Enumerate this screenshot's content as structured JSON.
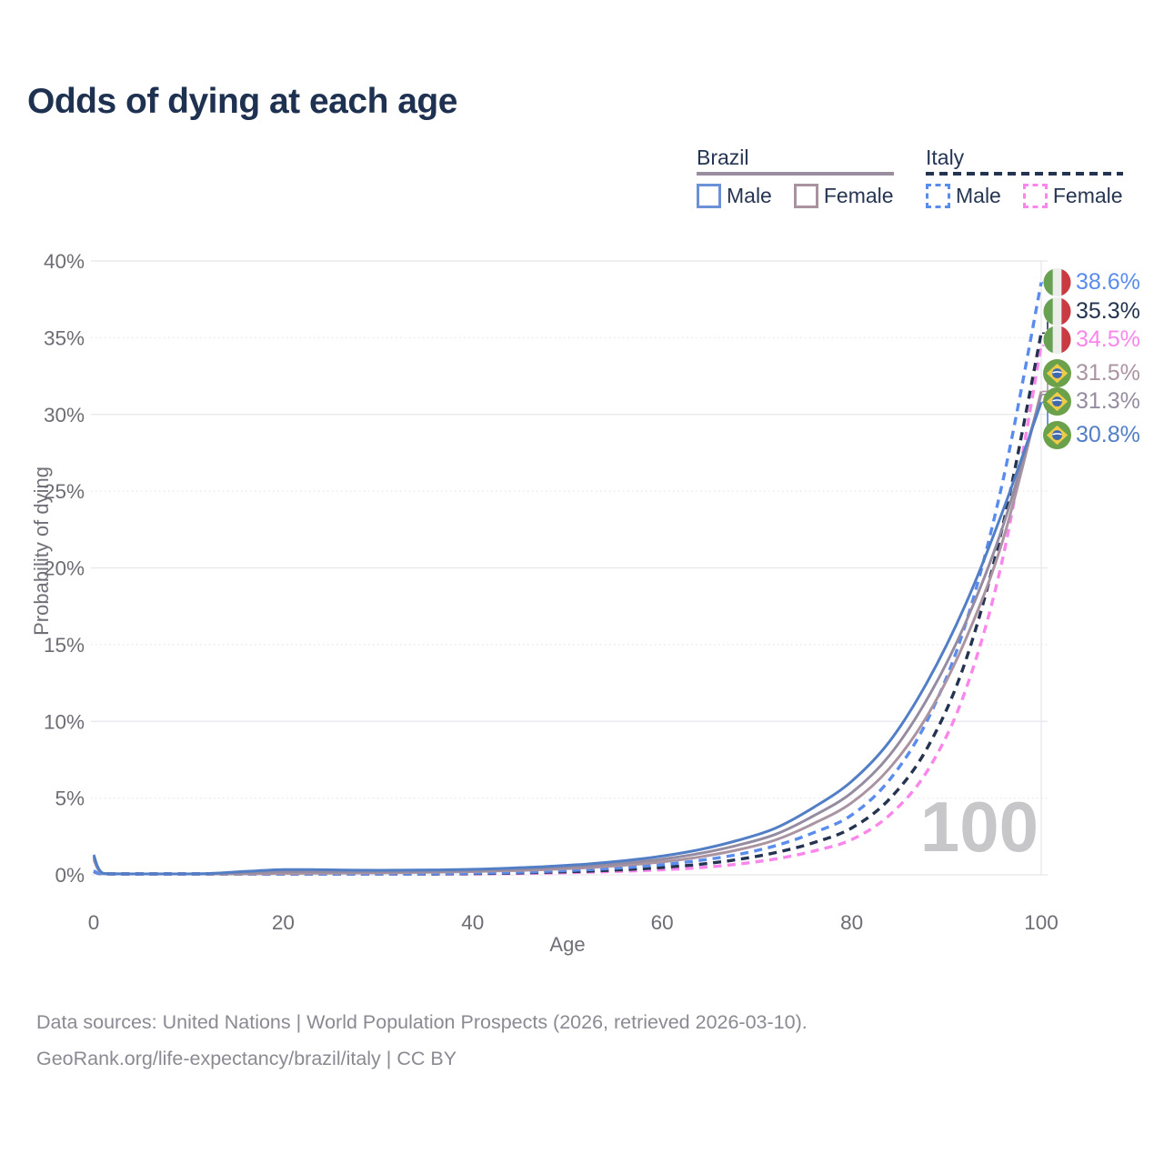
{
  "title": "Odds of dying at each age",
  "legend": {
    "brazil": {
      "label": "Brazil",
      "male": "Male",
      "female": "Female"
    },
    "italy": {
      "label": "Italy",
      "male": "Male",
      "female": "Female"
    }
  },
  "watermark": "100",
  "footer": {
    "line1": "Data sources: United Nations | World Population Prospects (2026, retrieved 2026-03-10).",
    "line2": "GeoRank.org/life-expectancy/brazil/italy | CC BY"
  },
  "colors": {
    "title_text": "#1f3150",
    "legend_text": "#263552",
    "axis_text": "#6d6d75",
    "gridline": "#e7e7ec",
    "watermark": "#c7c7ca",
    "brazil_male": "#527ec6",
    "brazil_both": "#958ca1",
    "brazil_female": "#aa94a2",
    "italy_male": "#5a8cee",
    "italy_both": "#24334f",
    "italy_female": "#fa86ec"
  },
  "chart_data": {
    "type": "line",
    "title": "Odds of dying at each age",
    "xlabel": "Age",
    "ylabel": "Probability of dying",
    "xlim": [
      0,
      100
    ],
    "ylim": [
      0,
      40
    ],
    "grid": "horizontal-only",
    "legend_position": "top-right",
    "xticks": [
      "0",
      "20",
      "40",
      "60",
      "80",
      "100"
    ],
    "yticks": [
      "0%",
      "5%",
      "10%",
      "15%",
      "20%",
      "25%",
      "30%",
      "35%",
      "40%"
    ],
    "series": [
      {
        "id": "italy-female",
        "name": "Italy Female",
        "country": "Italy",
        "sex": "Female",
        "style": "dashed",
        "color": "#fa86ec",
        "end_value": "34.5%",
        "points": [
          [
            0,
            0.2
          ],
          [
            1,
            0.02
          ],
          [
            4,
            0.01
          ],
          [
            8,
            0.01
          ],
          [
            12,
            0.01
          ],
          [
            16,
            0.02
          ],
          [
            20,
            0.03
          ],
          [
            24,
            0.03
          ],
          [
            28,
            0.03
          ],
          [
            32,
            0.04
          ],
          [
            36,
            0.05
          ],
          [
            40,
            0.06
          ],
          [
            44,
            0.08
          ],
          [
            48,
            0.12
          ],
          [
            52,
            0.17
          ],
          [
            56,
            0.24
          ],
          [
            60,
            0.33
          ],
          [
            64,
            0.47
          ],
          [
            68,
            0.7
          ],
          [
            72,
            1.04
          ],
          [
            76,
            1.55
          ],
          [
            80,
            2.3
          ],
          [
            84,
            3.9
          ],
          [
            88,
            6.8
          ],
          [
            92,
            12.0
          ],
          [
            96,
            20.8
          ],
          [
            100,
            34.5
          ]
        ]
      },
      {
        "id": "italy-both",
        "name": "Italy Both sexes",
        "country": "Italy",
        "sex": "Both",
        "style": "dashed",
        "color": "#24334f",
        "end_value": "35.3%",
        "points": [
          [
            0,
            0.23
          ],
          [
            1,
            0.02
          ],
          [
            4,
            0.01
          ],
          [
            8,
            0.01
          ],
          [
            12,
            0.02
          ],
          [
            16,
            0.03
          ],
          [
            20,
            0.04
          ],
          [
            24,
            0.04
          ],
          [
            28,
            0.05
          ],
          [
            32,
            0.05
          ],
          [
            36,
            0.06
          ],
          [
            40,
            0.08
          ],
          [
            44,
            0.12
          ],
          [
            48,
            0.17
          ],
          [
            52,
            0.24
          ],
          [
            56,
            0.34
          ],
          [
            60,
            0.48
          ],
          [
            64,
            0.69
          ],
          [
            68,
            1.0
          ],
          [
            72,
            1.45
          ],
          [
            76,
            2.1
          ],
          [
            80,
            3.05
          ],
          [
            84,
            4.95
          ],
          [
            88,
            8.3
          ],
          [
            92,
            13.9
          ],
          [
            96,
            22.9
          ],
          [
            100,
            35.3
          ]
        ]
      },
      {
        "id": "italy-male",
        "name": "Italy Male",
        "country": "Italy",
        "sex": "Male",
        "style": "dashed",
        "color": "#5a8cee",
        "end_value": "38.6%",
        "points": [
          [
            0,
            0.26
          ],
          [
            1,
            0.02
          ],
          [
            4,
            0.01
          ],
          [
            8,
            0.01
          ],
          [
            12,
            0.02
          ],
          [
            16,
            0.04
          ],
          [
            20,
            0.06
          ],
          [
            24,
            0.06
          ],
          [
            28,
            0.06
          ],
          [
            32,
            0.07
          ],
          [
            36,
            0.08
          ],
          [
            40,
            0.11
          ],
          [
            44,
            0.16
          ],
          [
            48,
            0.23
          ],
          [
            52,
            0.33
          ],
          [
            56,
            0.47
          ],
          [
            60,
            0.66
          ],
          [
            64,
            0.94
          ],
          [
            68,
            1.33
          ],
          [
            72,
            1.9
          ],
          [
            76,
            2.75
          ],
          [
            80,
            3.9
          ],
          [
            84,
            6.2
          ],
          [
            88,
            10.1
          ],
          [
            92,
            16.3
          ],
          [
            96,
            25.8
          ],
          [
            100,
            38.6
          ]
        ]
      },
      {
        "id": "brazil-female",
        "name": "Brazil Female",
        "country": "Brazil",
        "sex": "Female",
        "style": "solid",
        "color": "#aa94a2",
        "end_value": "31.5%",
        "points": [
          [
            0,
            1.0
          ],
          [
            1,
            0.07
          ],
          [
            4,
            0.03
          ],
          [
            8,
            0.03
          ],
          [
            12,
            0.04
          ],
          [
            16,
            0.06
          ],
          [
            20,
            0.09
          ],
          [
            24,
            0.1
          ],
          [
            28,
            0.12
          ],
          [
            32,
            0.14
          ],
          [
            36,
            0.17
          ],
          [
            40,
            0.21
          ],
          [
            44,
            0.27
          ],
          [
            48,
            0.35
          ],
          [
            52,
            0.46
          ],
          [
            56,
            0.62
          ],
          [
            60,
            0.84
          ],
          [
            64,
            1.17
          ],
          [
            68,
            1.63
          ],
          [
            72,
            2.28
          ],
          [
            76,
            3.35
          ],
          [
            80,
            4.7
          ],
          [
            84,
            6.95
          ],
          [
            88,
            10.4
          ],
          [
            92,
            15.3
          ],
          [
            96,
            21.9
          ],
          [
            100,
            31.5
          ]
        ]
      },
      {
        "id": "brazil-both",
        "name": "Brazil Both sexes",
        "country": "Brazil",
        "sex": "Both",
        "style": "solid",
        "color": "#958ca1",
        "end_value": "31.3%",
        "points": [
          [
            0,
            1.15
          ],
          [
            1,
            0.08
          ],
          [
            4,
            0.04
          ],
          [
            8,
            0.04
          ],
          [
            12,
            0.06
          ],
          [
            16,
            0.13
          ],
          [
            20,
            0.2
          ],
          [
            24,
            0.2
          ],
          [
            28,
            0.19
          ],
          [
            32,
            0.2
          ],
          [
            36,
            0.23
          ],
          [
            40,
            0.27
          ],
          [
            44,
            0.34
          ],
          [
            48,
            0.44
          ],
          [
            52,
            0.57
          ],
          [
            56,
            0.76
          ],
          [
            60,
            1.02
          ],
          [
            64,
            1.4
          ],
          [
            68,
            1.93
          ],
          [
            72,
            2.65
          ],
          [
            76,
            3.85
          ],
          [
            80,
            5.35
          ],
          [
            84,
            7.8
          ],
          [
            88,
            11.5
          ],
          [
            92,
            16.4
          ],
          [
            96,
            22.8
          ],
          [
            100,
            31.3
          ]
        ]
      },
      {
        "id": "brazil-male",
        "name": "Brazil Male",
        "country": "Brazil",
        "sex": "Male",
        "style": "solid",
        "color": "#527ec6",
        "end_value": "30.8%",
        "points": [
          [
            0,
            1.3
          ],
          [
            1,
            0.09
          ],
          [
            4,
            0.05
          ],
          [
            8,
            0.05
          ],
          [
            12,
            0.08
          ],
          [
            16,
            0.22
          ],
          [
            20,
            0.34
          ],
          [
            24,
            0.33
          ],
          [
            28,
            0.3
          ],
          [
            32,
            0.3
          ],
          [
            36,
            0.32
          ],
          [
            40,
            0.36
          ],
          [
            44,
            0.44
          ],
          [
            48,
            0.55
          ],
          [
            52,
            0.7
          ],
          [
            56,
            0.92
          ],
          [
            60,
            1.22
          ],
          [
            64,
            1.65
          ],
          [
            68,
            2.25
          ],
          [
            72,
            3.05
          ],
          [
            76,
            4.4
          ],
          [
            80,
            6.1
          ],
          [
            84,
            8.7
          ],
          [
            88,
            12.6
          ],
          [
            92,
            17.6
          ],
          [
            96,
            23.8
          ],
          [
            100,
            30.8
          ]
        ]
      }
    ],
    "end_labels": [
      {
        "text": "38.6%",
        "flag": "italy",
        "series": "italy-male"
      },
      {
        "text": "35.3%",
        "flag": "italy",
        "series": "italy-both"
      },
      {
        "text": "34.5%",
        "flag": "italy",
        "series": "italy-female"
      },
      {
        "text": "31.5%",
        "flag": "brazil",
        "series": "brazil-female"
      },
      {
        "text": "31.3%",
        "flag": "brazil",
        "series": "brazil-both"
      },
      {
        "text": "30.8%",
        "flag": "brazil",
        "series": "brazil-male"
      }
    ]
  }
}
